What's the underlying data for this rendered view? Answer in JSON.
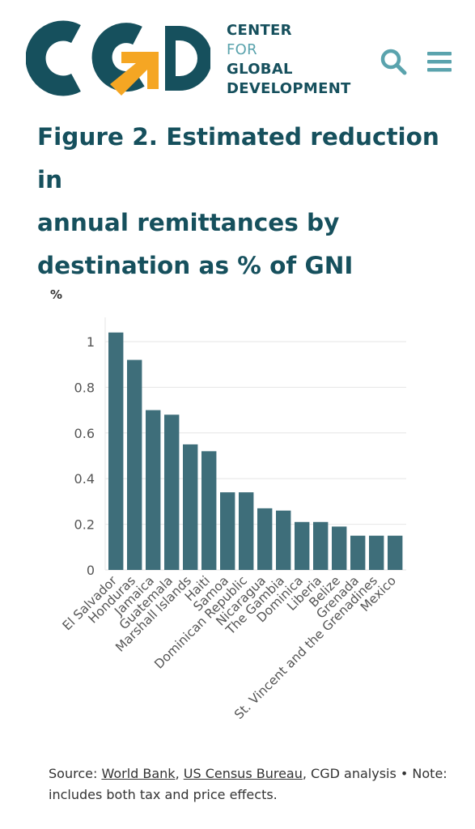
{
  "header": {
    "logo_icon": "cgd-logo-icon",
    "org_name_line1": "CENTER",
    "org_name_line2": "FOR",
    "org_name_line3": "GLOBAL",
    "org_name_line4": "DEVELOPMENT",
    "search_icon": "search-icon",
    "menu_icon": "hamburger-menu-icon"
  },
  "colors": {
    "brand_dark": "#16505d",
    "brand_light": "#5aa3ad",
    "accent": "#f5a623",
    "bar": "#3e6e7a"
  },
  "figure": {
    "title_line1": "Figure 2. Estimated reduction in",
    "title_line2": "annual remittances by",
    "title_line3": "destination as % of GNI"
  },
  "chart_data": {
    "type": "bar",
    "ylabel": "%",
    "xlabel": "",
    "ylim": [
      0,
      1.05
    ],
    "yticks": [
      0,
      0.2,
      0.4,
      0.6,
      0.8,
      1
    ],
    "ytick_labels": [
      "0",
      "0.2",
      "0.4",
      "0.6",
      "0.8",
      "1"
    ],
    "grid": true,
    "categories": [
      "El Salvador",
      "Honduras",
      "Jamaica",
      "Guatemala",
      "Marshall Islands",
      "Haiti",
      "Samoa",
      "Dominican Republic",
      "Nicaragua",
      "The Gambia",
      "Dominica",
      "Liberia",
      "Belize",
      "Grenada",
      "St. Vincent and the Grenadines",
      "Mexico"
    ],
    "values": [
      1.04,
      0.92,
      0.7,
      0.68,
      0.55,
      0.52,
      0.34,
      0.34,
      0.27,
      0.26,
      0.21,
      0.21,
      0.19,
      0.15,
      0.15,
      0.15
    ]
  },
  "source": {
    "prefix": "Source: ",
    "link1": "World Bank",
    "sep1": ", ",
    "link2": "US Census Bureau",
    "rest": ", CGD analysis • Note: includes both tax and price effects."
  }
}
